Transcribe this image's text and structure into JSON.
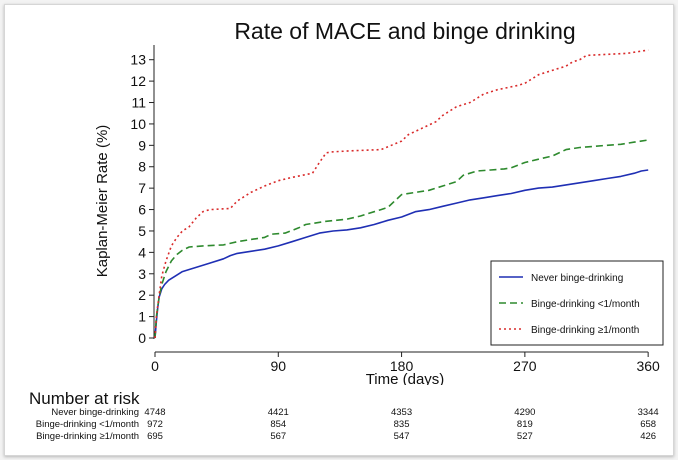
{
  "chart_data": {
    "type": "line",
    "title": "Rate of MACE and binge drinking",
    "xlabel": "Time (days)",
    "ylabel": "Kaplan-Meier Rate (%)",
    "xlim": [
      0,
      365
    ],
    "ylim": [
      0,
      13.5
    ],
    "xticks": [
      0,
      90,
      180,
      270,
      360
    ],
    "yticks": [
      0,
      1,
      2,
      3,
      4,
      5,
      6,
      7,
      8,
      9,
      10,
      11,
      12,
      13
    ],
    "grid": false,
    "legend_position": "bottom-right",
    "series": [
      {
        "name": "Never binge-drinking",
        "color": "#1f2fb4",
        "style": "solid",
        "x": [
          0,
          1,
          2,
          3,
          5,
          7,
          10,
          15,
          20,
          25,
          30,
          40,
          50,
          55,
          60,
          70,
          80,
          90,
          100,
          110,
          120,
          130,
          140,
          150,
          160,
          170,
          180,
          190,
          200,
          210,
          220,
          230,
          240,
          250,
          260,
          270,
          280,
          290,
          300,
          310,
          320,
          330,
          340,
          350,
          355,
          360
        ],
        "y": [
          0,
          0.8,
          1.4,
          1.9,
          2.3,
          2.5,
          2.7,
          2.9,
          3.1,
          3.2,
          3.3,
          3.5,
          3.7,
          3.85,
          3.95,
          4.05,
          4.15,
          4.3,
          4.5,
          4.7,
          4.9,
          5.0,
          5.05,
          5.15,
          5.3,
          5.5,
          5.65,
          5.9,
          6.0,
          6.15,
          6.3,
          6.45,
          6.55,
          6.65,
          6.75,
          6.9,
          7.0,
          7.05,
          7.15,
          7.25,
          7.35,
          7.45,
          7.55,
          7.7,
          7.8,
          7.85
        ]
      },
      {
        "name": "Binge-drinking <1/month",
        "color": "#2e8a2e",
        "style": "dashed",
        "x": [
          0,
          1,
          3,
          5,
          8,
          12,
          16,
          20,
          25,
          35,
          50,
          60,
          70,
          80,
          85,
          95,
          105,
          110,
          125,
          140,
          150,
          155,
          165,
          170,
          175,
          180,
          190,
          200,
          210,
          220,
          225,
          235,
          245,
          255,
          260,
          270,
          280,
          290,
          300,
          310,
          320,
          330,
          340,
          350,
          355,
          360
        ],
        "y": [
          0,
          1.0,
          1.9,
          2.5,
          3.1,
          3.6,
          3.9,
          4.1,
          4.25,
          4.3,
          4.35,
          4.5,
          4.6,
          4.7,
          4.85,
          4.9,
          5.15,
          5.3,
          5.45,
          5.55,
          5.7,
          5.8,
          6.0,
          6.1,
          6.4,
          6.7,
          6.8,
          6.9,
          7.1,
          7.3,
          7.6,
          7.8,
          7.85,
          7.9,
          7.95,
          8.2,
          8.35,
          8.5,
          8.8,
          8.9,
          8.95,
          9.0,
          9.05,
          9.15,
          9.2,
          9.25
        ]
      },
      {
        "name": "Binge-drinking ≥1/month",
        "color": "#d92b2b",
        "style": "dotted",
        "x": [
          0,
          1,
          3,
          5,
          8,
          12,
          16,
          20,
          25,
          30,
          35,
          40,
          55,
          60,
          70,
          80,
          90,
          100,
          115,
          120,
          125,
          130,
          145,
          165,
          180,
          185,
          195,
          205,
          210,
          220,
          230,
          240,
          250,
          265,
          270,
          275,
          280,
          290,
          300,
          305,
          310,
          315,
          330,
          345,
          355,
          360
        ],
        "y": [
          0,
          1.0,
          2.0,
          2.9,
          3.6,
          4.3,
          4.7,
          5.0,
          5.2,
          5.6,
          5.9,
          6.0,
          6.05,
          6.4,
          6.8,
          7.1,
          7.35,
          7.5,
          7.7,
          8.2,
          8.65,
          8.7,
          8.75,
          8.8,
          9.2,
          9.5,
          9.8,
          10.1,
          10.4,
          10.8,
          11.0,
          11.4,
          11.6,
          11.8,
          11.9,
          12.1,
          12.3,
          12.5,
          12.7,
          12.9,
          13.0,
          13.2,
          13.25,
          13.3,
          13.4,
          13.45
        ]
      }
    ]
  },
  "risk_table": {
    "title": "Number at risk",
    "days": [
      0,
      90,
      180,
      270,
      360
    ],
    "rows": [
      {
        "label": "Never binge-drinking",
        "values": [
          "4748",
          "4421",
          "4353",
          "4290",
          "3344"
        ]
      },
      {
        "label": "Binge-drinking <1/month",
        "values": [
          "972",
          "854",
          "835",
          "819",
          "658"
        ]
      },
      {
        "label": "Binge-drinking ≥1/month",
        "values": [
          "695",
          "567",
          "547",
          "527",
          "426"
        ]
      }
    ]
  }
}
